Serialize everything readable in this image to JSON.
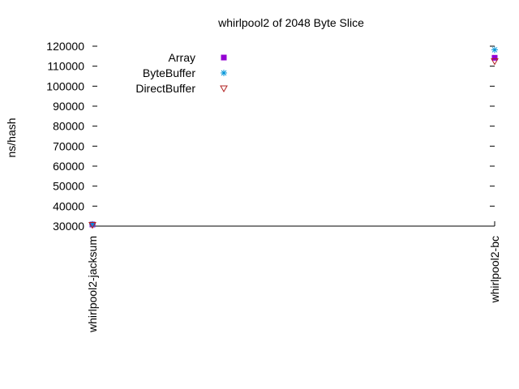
{
  "chart_data": {
    "type": "scatter",
    "title": "whirlpool2 of 2048 Byte Slice",
    "xlabel": "",
    "ylabel": "ns/hash",
    "categories": [
      "whirlpool2-jacksum",
      "whirlpool2-bc"
    ],
    "ylim": [
      30000,
      120000
    ],
    "yticks": [
      30000,
      40000,
      50000,
      60000,
      70000,
      80000,
      90000,
      100000,
      110000,
      120000
    ],
    "grid": false,
    "legend_position": "top-left",
    "series": [
      {
        "name": "Array",
        "marker": "filled-square",
        "color": "#9400d3",
        "values": [
          30800,
          114200
        ]
      },
      {
        "name": "ByteBuffer",
        "marker": "asterisk",
        "color": "#0095d9",
        "values": [
          30900,
          118200
        ]
      },
      {
        "name": "DirectBuffer",
        "marker": "open-triangle-down",
        "color": "#b22222",
        "values": [
          30600,
          112500
        ]
      }
    ]
  }
}
